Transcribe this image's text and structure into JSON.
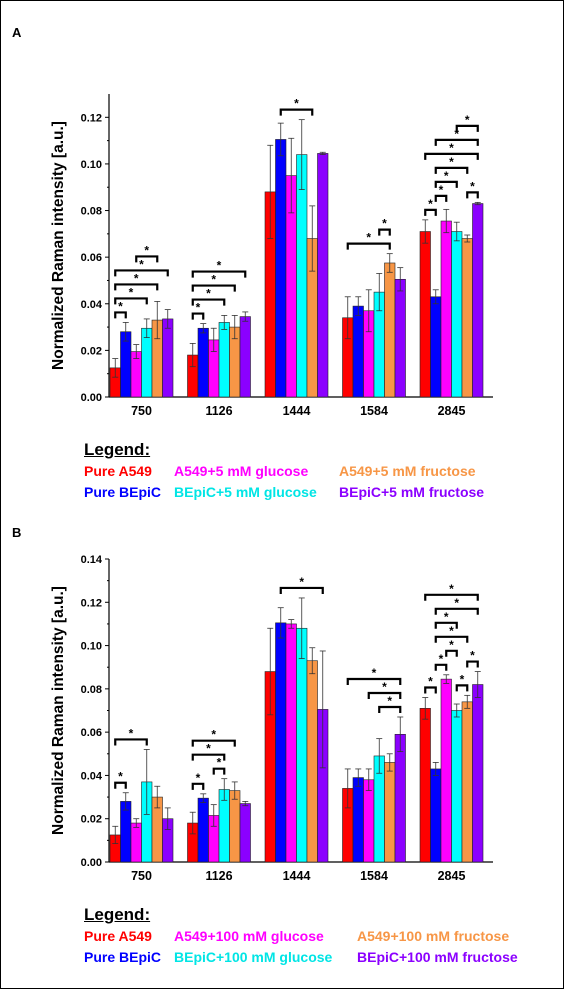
{
  "colors": {
    "pure_a549": "#ff0000",
    "pure_bepic": "#0000ff",
    "a549_glucose": "#ff00ff",
    "bepic_glucose": "#00ffff",
    "a549_fructose": "#f79646",
    "bepic_fructose": "#8b00ff"
  },
  "chart_data": [
    {
      "panel_label": "A",
      "type": "bar",
      "ylabel": "Normalized Raman intensity [a.u.]",
      "xlabel": "",
      "ylim": [
        0,
        0.13
      ],
      "yticks": [
        "0.00",
        "0.02",
        "0.04",
        "0.06",
        "0.08",
        "0.10",
        "0.12"
      ],
      "categories": [
        "750",
        "1126",
        "1444",
        "1584",
        "2845"
      ],
      "series": [
        {
          "name": "Pure A549",
          "values": [
            0.0125,
            0.018,
            0.088,
            0.034,
            0.071
          ],
          "errors": [
            0.004,
            0.005,
            0.02,
            0.009,
            0.005
          ]
        },
        {
          "name": "Pure BEpiC",
          "values": [
            0.028,
            0.0295,
            0.1105,
            0.039,
            0.043
          ],
          "errors": [
            0.004,
            0.002,
            0.007,
            0.004,
            0.003
          ]
        },
        {
          "name": "A549+5 mM glucose",
          "values": [
            0.0195,
            0.0245,
            0.095,
            0.037,
            0.0755
          ],
          "errors": [
            0.003,
            0.005,
            0.016,
            0.009,
            0.005
          ]
        },
        {
          "name": "BEpiC+5 mM glucose",
          "values": [
            0.0295,
            0.032,
            0.104,
            0.045,
            0.071
          ],
          "errors": [
            0.004,
            0.003,
            0.015,
            0.008,
            0.004
          ]
        },
        {
          "name": "A549+5 mM fructose",
          "values": [
            0.033,
            0.03,
            0.068,
            0.0575,
            0.068
          ],
          "errors": [
            0.008,
            0.005,
            0.014,
            0.004,
            0.0015
          ]
        },
        {
          "name": "BEpiC+5 mM fructose",
          "values": [
            0.0335,
            0.0345,
            0.1045,
            0.0505,
            0.083
          ],
          "errors": [
            0.004,
            0.002,
            0.0005,
            0.005,
            0.0005
          ]
        }
      ],
      "significance": [
        {
          "category": "750",
          "from": 0,
          "to": 1,
          "label": "*"
        },
        {
          "category": "750",
          "from": 0,
          "to": 3,
          "label": "*"
        },
        {
          "category": "750",
          "from": 0,
          "to": 4,
          "label": "*"
        },
        {
          "category": "750",
          "from": 0,
          "to": 5,
          "label": "*"
        },
        {
          "category": "750",
          "from": 2,
          "to": 4,
          "label": "*"
        },
        {
          "category": "1126",
          "from": 0,
          "to": 1,
          "label": "*"
        },
        {
          "category": "1126",
          "from": 0,
          "to": 3,
          "label": "*"
        },
        {
          "category": "1126",
          "from": 0,
          "to": 4,
          "label": "*"
        },
        {
          "category": "1126",
          "from": 0,
          "to": 5,
          "label": "*"
        },
        {
          "category": "1444",
          "from": 1,
          "to": 4,
          "label": "*"
        },
        {
          "category": "1584",
          "from": 0,
          "to": 4,
          "label": "*"
        },
        {
          "category": "1584",
          "from": 3,
          "to": 4,
          "label": "*"
        },
        {
          "category": "2845",
          "from": 0,
          "to": 1,
          "label": "*"
        },
        {
          "category": "2845",
          "from": 1,
          "to": 2,
          "label": "*"
        },
        {
          "category": "2845",
          "from": 1,
          "to": 3,
          "label": "*"
        },
        {
          "category": "2845",
          "from": 1,
          "to": 4,
          "label": "*"
        },
        {
          "category": "2845",
          "from": 0,
          "to": 5,
          "label": "*"
        },
        {
          "category": "2845",
          "from": 1,
          "to": 5,
          "label": "*"
        },
        {
          "category": "2845",
          "from": 3,
          "to": 5,
          "label": "*"
        },
        {
          "category": "2845",
          "from": 4,
          "to": 5,
          "label": "*"
        }
      ],
      "legend": {
        "title": "Legend:",
        "items": [
          "Pure A549",
          "A549+5 mM glucose",
          "A549+5 mM fructose",
          "Pure BEpiC",
          "BEpiC+5 mM glucose",
          "BEpiC+5 mM fructose"
        ]
      }
    },
    {
      "panel_label": "B",
      "type": "bar",
      "ylabel": "Normalized Raman intensity [a.u.]",
      "xlabel": "",
      "ylim": [
        0,
        0.14
      ],
      "yticks": [
        "0.00",
        "0.02",
        "0.04",
        "0.06",
        "0.08",
        "0.10",
        "0.12",
        "0.14"
      ],
      "categories": [
        "750",
        "1126",
        "1444",
        "1584",
        "2845"
      ],
      "series": [
        {
          "name": "Pure A549",
          "values": [
            0.0125,
            0.018,
            0.088,
            0.034,
            0.071
          ],
          "errors": [
            0.004,
            0.005,
            0.02,
            0.009,
            0.005
          ]
        },
        {
          "name": "Pure BEpiC",
          "values": [
            0.028,
            0.0295,
            0.1105,
            0.039,
            0.043
          ],
          "errors": [
            0.004,
            0.002,
            0.007,
            0.004,
            0.003
          ]
        },
        {
          "name": "A549+100 mM glucose",
          "values": [
            0.018,
            0.0215,
            0.11,
            0.038,
            0.0845
          ],
          "errors": [
            0.002,
            0.005,
            0.002,
            0.005,
            0.002
          ]
        },
        {
          "name": "BEpiC+100 mM glucose",
          "values": [
            0.037,
            0.0335,
            0.108,
            0.049,
            0.07
          ],
          "errors": [
            0.015,
            0.005,
            0.014,
            0.008,
            0.003
          ]
        },
        {
          "name": "A549+100 mM fructose",
          "values": [
            0.03,
            0.033,
            0.093,
            0.046,
            0.074
          ],
          "errors": [
            0.005,
            0.004,
            0.006,
            0.004,
            0.003
          ]
        },
        {
          "name": "BEpiC+100 mM fructose",
          "values": [
            0.02,
            0.027,
            0.0705,
            0.059,
            0.082
          ],
          "errors": [
            0.005,
            0.001,
            0.027,
            0.008,
            0.006
          ]
        }
      ],
      "significance": [
        {
          "category": "750",
          "from": 0,
          "to": 1,
          "label": "*"
        },
        {
          "category": "750",
          "from": 0,
          "to": 3,
          "label": "*"
        },
        {
          "category": "1126",
          "from": 0,
          "to": 1,
          "label": "*"
        },
        {
          "category": "1126",
          "from": 2,
          "to": 3,
          "label": "*"
        },
        {
          "category": "1126",
          "from": 0,
          "to": 3,
          "label": "*"
        },
        {
          "category": "1126",
          "from": 0,
          "to": 4,
          "label": "*"
        },
        {
          "category": "1444",
          "from": 1,
          "to": 5,
          "label": "*"
        },
        {
          "category": "1584",
          "from": 3,
          "to": 5,
          "label": "*"
        },
        {
          "category": "1584",
          "from": 2,
          "to": 5,
          "label": "*"
        },
        {
          "category": "1584",
          "from": 0,
          "to": 5,
          "label": "*"
        },
        {
          "category": "2845",
          "from": 0,
          "to": 1,
          "label": "*"
        },
        {
          "category": "2845",
          "from": 1,
          "to": 2,
          "label": "*"
        },
        {
          "category": "2845",
          "from": 2,
          "to": 3,
          "label": "*"
        },
        {
          "category": "2845",
          "from": 3,
          "to": 4,
          "label": "*"
        },
        {
          "category": "2845",
          "from": 4,
          "to": 5,
          "label": "*"
        },
        {
          "category": "2845",
          "from": 1,
          "to": 4,
          "label": "*"
        },
        {
          "category": "2845",
          "from": 1,
          "to": 3,
          "label": "*"
        },
        {
          "category": "2845",
          "from": 1,
          "to": 5,
          "label": "*"
        },
        {
          "category": "2845",
          "from": 0,
          "to": 5,
          "label": "*"
        }
      ],
      "legend": {
        "title": "Legend:",
        "items": [
          "Pure A549",
          "A549+100 mM glucose",
          "A549+100 mM fructose",
          "Pure BEpiC",
          "BEpiC+100 mM glucose",
          "BEpiC+100 mM fructose"
        ]
      }
    }
  ]
}
